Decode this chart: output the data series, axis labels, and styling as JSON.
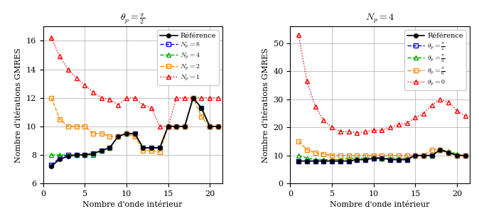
{
  "left_title": "$\\theta_p = \\frac{\\pi}{2}$",
  "right_title": "$N_p = 4$",
  "xlabel": "Nombre d'onde intérieur",
  "ylabel": "Nombre d'itérations GMRES",
  "left": {
    "reference": {
      "x": [
        1,
        2,
        3,
        4,
        5,
        6,
        7,
        8,
        9,
        10,
        11,
        12,
        13,
        14,
        15,
        16,
        17,
        18,
        19,
        20,
        21
      ],
      "y": [
        7.2,
        7.7,
        7.9,
        8.0,
        8.0,
        8.1,
        8.3,
        8.5,
        9.3,
        9.5,
        9.5,
        8.5,
        8.5,
        8.5,
        10.0,
        10.0,
        10.0,
        12.0,
        11.3,
        10.0,
        10.0
      ],
      "color": "#000000",
      "marker": "o",
      "linestyle": "-",
      "label": "Référence"
    },
    "Np8": {
      "x": [
        1,
        2,
        3,
        4,
        5,
        6,
        7,
        8,
        9,
        10,
        11,
        12,
        13,
        14,
        15,
        16,
        17,
        18,
        19,
        20,
        21
      ],
      "y": [
        7.3,
        7.8,
        8.0,
        8.0,
        8.0,
        8.1,
        8.3,
        8.5,
        9.3,
        9.5,
        9.5,
        8.5,
        8.5,
        8.5,
        10.0,
        10.0,
        10.0,
        12.0,
        11.3,
        10.0,
        10.0
      ],
      "color": "#0000FF",
      "marker": "s",
      "linestyle": "--",
      "label": "$N_p = 8$"
    },
    "Np4": {
      "x": [
        1,
        2,
        3,
        4,
        5,
        6,
        7,
        8,
        9,
        10,
        11,
        12,
        13,
        14,
        15,
        16,
        17,
        18,
        19,
        20,
        21
      ],
      "y": [
        8.0,
        8.0,
        8.0,
        8.0,
        8.0,
        8.0,
        8.3,
        8.5,
        9.3,
        9.5,
        9.5,
        8.5,
        8.5,
        8.5,
        10.0,
        10.0,
        10.0,
        12.0,
        11.3,
        10.0,
        10.0
      ],
      "color": "#00AA00",
      "marker": "^",
      "linestyle": "--",
      "label": "$N_p = 4$"
    },
    "Np2": {
      "x": [
        1,
        2,
        3,
        4,
        5,
        6,
        7,
        8,
        9,
        10,
        11,
        12,
        13,
        14,
        15,
        16,
        17,
        18,
        19,
        20,
        21
      ],
      "y": [
        12.0,
        10.5,
        10.0,
        10.0,
        10.0,
        9.5,
        9.5,
        9.3,
        9.3,
        9.5,
        9.3,
        8.3,
        8.3,
        8.2,
        10.0,
        10.0,
        10.0,
        12.0,
        10.7,
        10.0,
        10.0
      ],
      "color": "#FF8800",
      "marker": "s",
      "linestyle": "--",
      "label": "$N_p = 2$"
    },
    "Np1": {
      "x": [
        1,
        2,
        3,
        4,
        5,
        6,
        7,
        8,
        9,
        10,
        11,
        12,
        13,
        14,
        15,
        16,
        17,
        18,
        19,
        20,
        21
      ],
      "y": [
        16.2,
        14.9,
        14.0,
        13.4,
        12.9,
        12.4,
        12.0,
        11.9,
        11.5,
        12.0,
        12.0,
        11.5,
        11.3,
        10.0,
        10.0,
        12.0,
        12.0,
        12.0,
        12.0,
        12.0,
        12.0
      ],
      "color": "#FF0000",
      "marker": "^",
      "linestyle": ":",
      "label": "$N_p = 1$"
    },
    "ylim": [
      6,
      17
    ],
    "yticks": [
      6,
      8,
      10,
      12,
      14,
      16
    ],
    "xlim": [
      0,
      21.5
    ],
    "xticks": [
      0,
      5,
      10,
      15,
      20
    ]
  },
  "right": {
    "reference": {
      "x": [
        1,
        2,
        3,
        4,
        5,
        6,
        7,
        8,
        9,
        10,
        11,
        12,
        13,
        14,
        15,
        16,
        17,
        18,
        19,
        20,
        21
      ],
      "y": [
        8.0,
        8.0,
        8.0,
        8.0,
        8.0,
        8.0,
        8.0,
        8.5,
        8.5,
        9.0,
        9.0,
        8.5,
        8.5,
        8.5,
        10.0,
        10.0,
        10.0,
        12.0,
        11.0,
        10.0,
        10.0
      ],
      "color": "#000000",
      "marker": "o",
      "linestyle": "-",
      "label": "Référence"
    },
    "theta_pi2": {
      "x": [
        1,
        2,
        3,
        4,
        5,
        6,
        7,
        8,
        9,
        10,
        11,
        12,
        13,
        14,
        15,
        16,
        17,
        18,
        19,
        20,
        21
      ],
      "y": [
        8.0,
        8.0,
        8.0,
        8.0,
        8.0,
        8.0,
        8.0,
        8.5,
        8.5,
        9.0,
        9.0,
        8.5,
        8.5,
        8.5,
        10.0,
        10.0,
        10.0,
        12.0,
        11.0,
        10.0,
        10.0
      ],
      "color": "#0000FF",
      "marker": "s",
      "linestyle": "--",
      "label": "$\\theta_p = \\frac{\\pi}{2}$"
    },
    "theta_pi3": {
      "x": [
        1,
        2,
        3,
        4,
        5,
        6,
        7,
        8,
        9,
        10,
        11,
        12,
        13,
        14,
        15,
        16,
        17,
        18,
        19,
        20,
        21
      ],
      "y": [
        10.0,
        9.0,
        8.5,
        8.5,
        8.5,
        8.5,
        9.0,
        9.0,
        9.0,
        9.5,
        9.0,
        9.0,
        9.0,
        9.0,
        10.0,
        10.0,
        10.0,
        12.0,
        11.5,
        10.5,
        10.0
      ],
      "color": "#00AA00",
      "marker": "^",
      "linestyle": "--",
      "label": "$\\theta_p = \\frac{\\pi}{3}$"
    },
    "theta_pi6": {
      "x": [
        1,
        2,
        3,
        4,
        5,
        6,
        7,
        8,
        9,
        10,
        11,
        12,
        13,
        14,
        15,
        16,
        17,
        18,
        19,
        20,
        21
      ],
      "y": [
        15.0,
        12.0,
        11.0,
        10.5,
        10.0,
        10.0,
        10.0,
        10.0,
        10.0,
        10.0,
        10.0,
        10.0,
        10.0,
        10.0,
        10.0,
        10.0,
        12.0,
        12.0,
        11.0,
        10.0,
        10.0
      ],
      "color": "#FF8800",
      "marker": "s",
      "linestyle": "--",
      "label": "$\\theta_p = \\frac{\\pi}{6}$"
    },
    "theta_0": {
      "x": [
        1,
        2,
        3,
        4,
        5,
        6,
        7,
        8,
        9,
        10,
        11,
        12,
        13,
        14,
        15,
        16,
        17,
        18,
        19,
        20,
        21
      ],
      "y": [
        53.0,
        36.5,
        27.5,
        22.5,
        20.0,
        18.5,
        18.5,
        18.0,
        18.5,
        19.0,
        19.0,
        20.0,
        21.0,
        21.5,
        23.5,
        25.0,
        28.0,
        30.0,
        29.0,
        26.0,
        24.0
      ],
      "color": "#FF0000",
      "marker": "^",
      "linestyle": ":",
      "label": "$\\theta_p = 0$"
    },
    "ylim": [
      0,
      56
    ],
    "yticks": [
      0,
      10,
      20,
      30,
      40,
      50
    ],
    "xlim": [
      0,
      21.5
    ],
    "xticks": [
      0,
      5,
      10,
      15,
      20
    ]
  }
}
